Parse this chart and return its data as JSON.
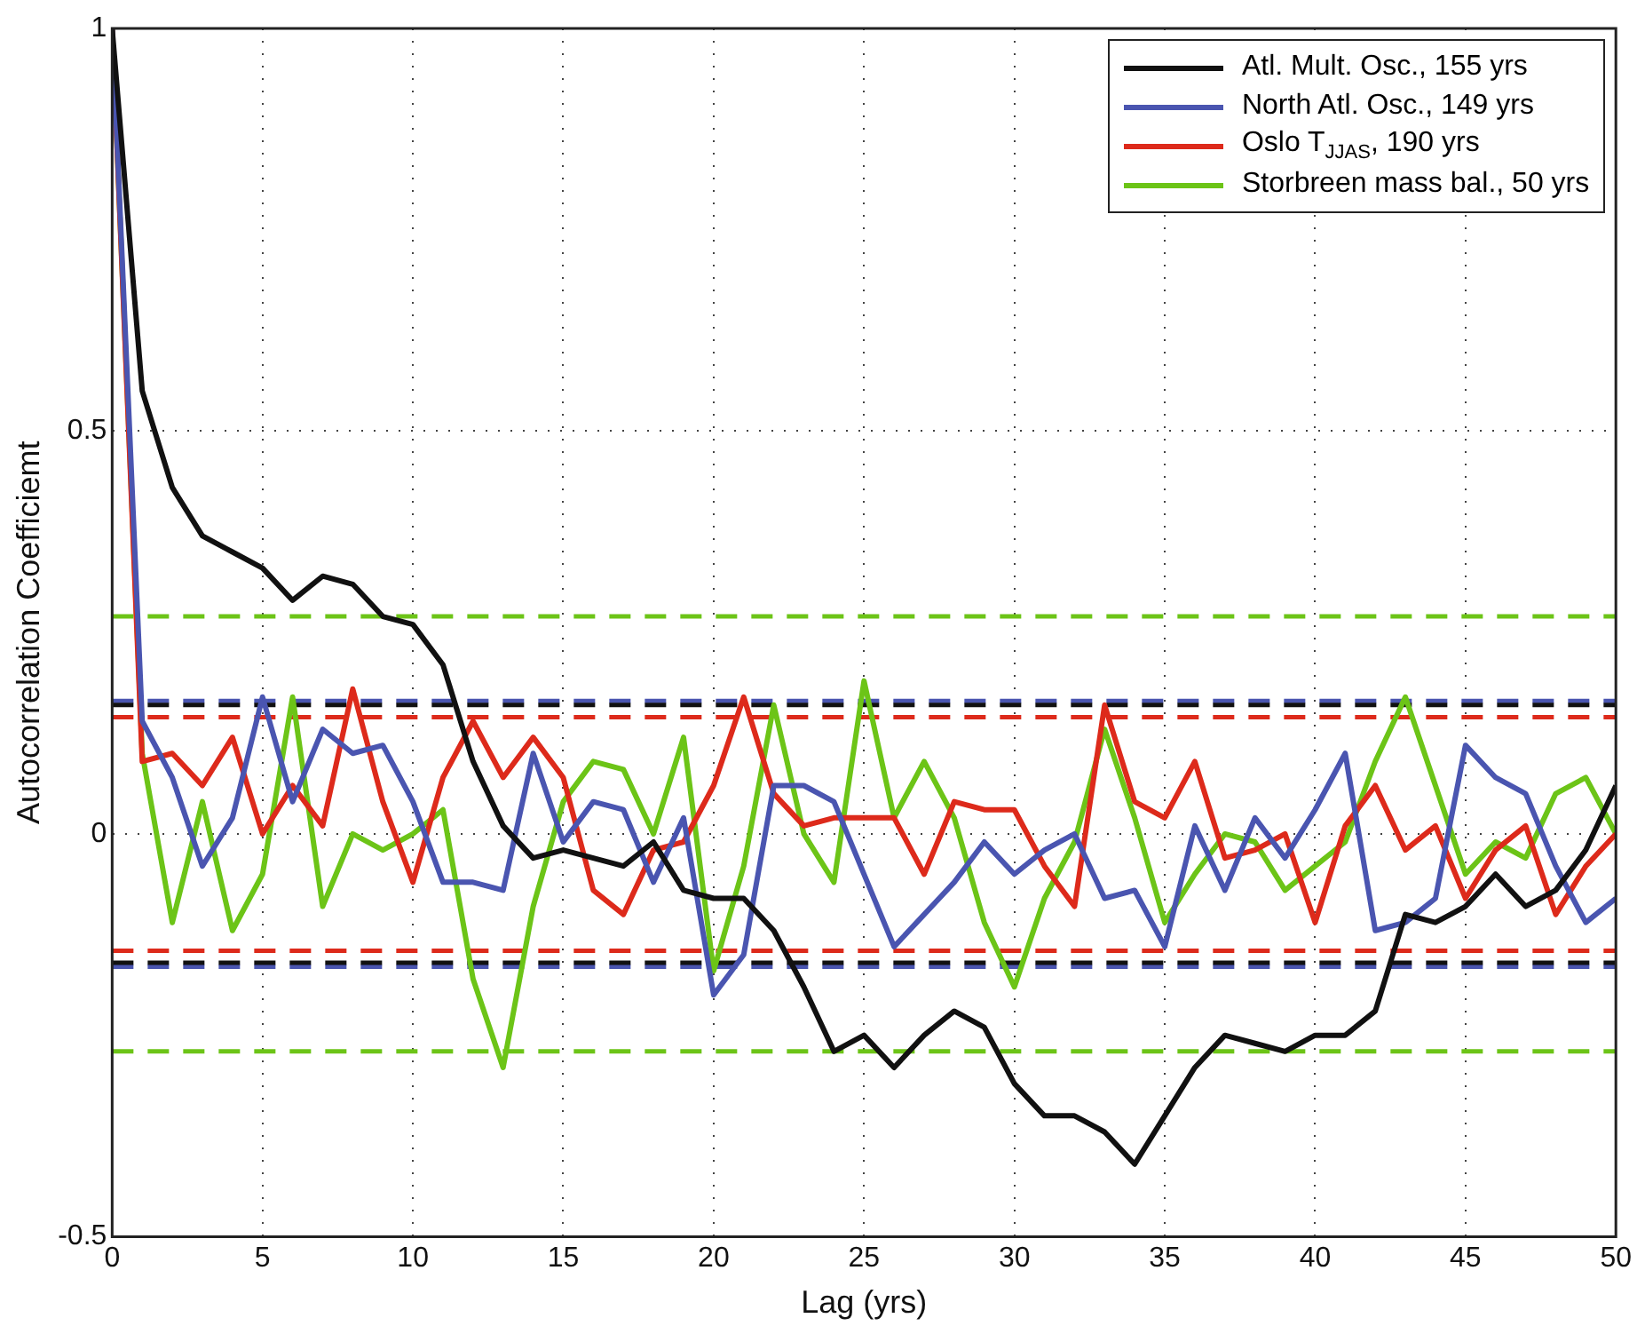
{
  "chart_data": {
    "type": "line",
    "xlabel": "Lag (yrs)",
    "ylabel": "Autocorrelation Coefficiemt",
    "x": [
      0,
      1,
      2,
      3,
      4,
      5,
      6,
      7,
      8,
      9,
      10,
      11,
      12,
      13,
      14,
      15,
      16,
      17,
      18,
      19,
      20,
      21,
      22,
      23,
      24,
      25,
      26,
      27,
      28,
      29,
      30,
      31,
      32,
      33,
      34,
      35,
      36,
      37,
      38,
      39,
      40,
      41,
      42,
      43,
      44,
      45,
      46,
      47,
      48,
      49,
      50
    ],
    "series": [
      {
        "name": "Atl. Mult. Osc., 155 yrs",
        "color": "#111111",
        "values": [
          1,
          0.55,
          0.43,
          0.37,
          0.35,
          0.33,
          0.29,
          0.32,
          0.31,
          0.27,
          0.26,
          0.21,
          0.09,
          0.01,
          -0.03,
          -0.02,
          -0.03,
          -0.04,
          -0.01,
          -0.07,
          -0.08,
          -0.08,
          -0.12,
          -0.19,
          -0.27,
          -0.25,
          -0.29,
          -0.25,
          -0.22,
          -0.24,
          -0.31,
          -0.35,
          -0.35,
          -0.37,
          -0.41,
          -0.35,
          -0.29,
          -0.25,
          -0.26,
          -0.27,
          -0.25,
          -0.25,
          -0.22,
          -0.1,
          -0.11,
          -0.09,
          -0.05,
          -0.09,
          -0.07,
          -0.02,
          0.06
        ]
      },
      {
        "name": "North Atl. Osc., 149 yrs",
        "color": "#4a55b0",
        "values": [
          1,
          0.14,
          0.07,
          -0.04,
          0.02,
          0.17,
          0.04,
          0.13,
          0.1,
          0.11,
          0.04,
          -0.06,
          -0.06,
          -0.07,
          0.1,
          -0.01,
          0.04,
          0.03,
          -0.06,
          0.02,
          -0.2,
          -0.15,
          0.06,
          0.06,
          0.04,
          -0.05,
          -0.14,
          -0.1,
          -0.06,
          -0.01,
          -0.05,
          -0.02,
          0,
          -0.08,
          -0.07,
          -0.14,
          0.01,
          -0.07,
          0.02,
          -0.03,
          0.03,
          0.1,
          -0.12,
          -0.11,
          -0.08,
          0.11,
          0.07,
          0.05,
          -0.04,
          -0.11,
          -0.08
        ]
      },
      {
        "name": "Oslo T$_{JJAS}$, 190 yrs",
        "color": "#dd2a1b",
        "values": [
          1,
          0.09,
          0.1,
          0.06,
          0.12,
          0,
          0.06,
          0.01,
          0.18,
          0.04,
          -0.06,
          0.07,
          0.14,
          0.07,
          0.12,
          0.07,
          -0.07,
          -0.1,
          -0.02,
          -0.01,
          0.06,
          0.17,
          0.05,
          0.01,
          0.02,
          0.02,
          0.02,
          -0.05,
          0.04,
          0.03,
          0.03,
          -0.04,
          -0.09,
          0.16,
          0.04,
          0.02,
          0.09,
          -0.03,
          -0.02,
          0,
          -0.11,
          0.01,
          0.06,
          -0.02,
          0.01,
          -0.08,
          -0.02,
          0.01,
          -0.1,
          -0.04,
          0
        ]
      },
      {
        "name": "Storbreen mass bal., 50 yrs",
        "color": "#6cc417",
        "values": [
          1,
          0.1,
          -0.11,
          0.04,
          -0.12,
          -0.05,
          0.17,
          -0.09,
          0,
          -0.02,
          0,
          0.03,
          -0.18,
          -0.29,
          -0.09,
          0.04,
          0.09,
          0.08,
          0,
          0.12,
          -0.17,
          -0.04,
          0.16,
          0,
          -0.06,
          0.19,
          0.02,
          0.09,
          0.02,
          -0.11,
          -0.19,
          -0.08,
          -0.01,
          0.13,
          0.02,
          -0.11,
          -0.05,
          0,
          -0.01,
          -0.07,
          -0.04,
          -0.01,
          0.09,
          0.17,
          0.06,
          -0.05,
          -0.01,
          -0.03,
          0.05,
          0.07,
          0
        ]
      }
    ],
    "ref_lines": [
      {
        "axis": "y",
        "value": 0.27,
        "color": "#6cc417",
        "line_style": "dashed"
      },
      {
        "axis": "y",
        "value": -0.27,
        "color": "#6cc417",
        "line_style": "dashed"
      },
      {
        "axis": "y",
        "value": 0.165,
        "color": "#4a55b0",
        "line_style": "dashed"
      },
      {
        "axis": "y",
        "value": -0.165,
        "color": "#4a55b0",
        "line_style": "dashed"
      },
      {
        "axis": "y",
        "value": 0.16,
        "color": "#111111",
        "line_style": "dashed"
      },
      {
        "axis": "y",
        "value": -0.16,
        "color": "#111111",
        "line_style": "dashed"
      },
      {
        "axis": "y",
        "value": 0.145,
        "color": "#dd2a1b",
        "line_style": "dashed"
      },
      {
        "axis": "y",
        "value": -0.145,
        "color": "#dd2a1b",
        "line_style": "dashed"
      }
    ],
    "xlim": [
      0,
      50
    ],
    "xticks": [
      0,
      5,
      10,
      15,
      20,
      25,
      30,
      35,
      40,
      45,
      50
    ],
    "ylim": [
      -0.5,
      1
    ],
    "yticks": [
      -0.5,
      0,
      0.5,
      1
    ],
    "grid": true,
    "legend": "top right",
    "marker": "none",
    "line_style": "solid"
  }
}
